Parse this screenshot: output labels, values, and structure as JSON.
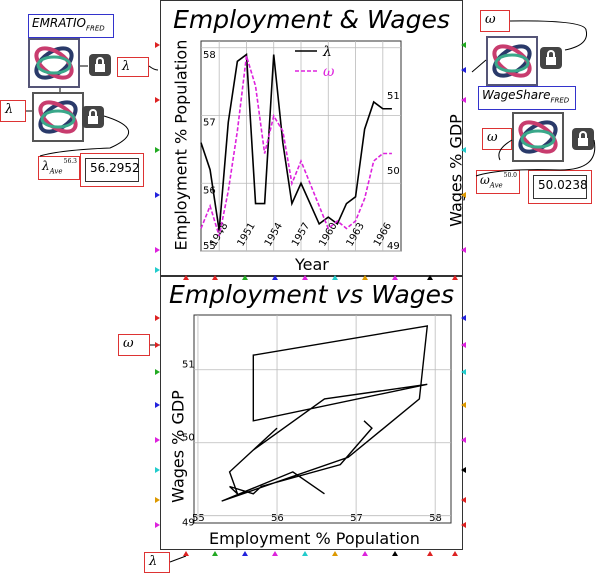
{
  "left_panel": {
    "emp_source_label": "EMRATIO",
    "emp_source_sub": "FRED",
    "emp_out_symbol": "λ",
    "lambda_input_symbol": "λ",
    "lambda_ave_symbol": "λ",
    "lambda_ave_sub": "Ave",
    "lambda_ave_sup": "56.3",
    "lambda_ave_value": "56.2952"
  },
  "right_panel": {
    "omega_top_symbol": "ω",
    "wage_source_label": "WageShare",
    "wage_source_sub": "FRED",
    "omega_input_symbol": "ω",
    "omega_ave_symbol": "ω",
    "omega_ave_sub": "Ave",
    "omega_ave_sup": "50.0",
    "omega_ave_value": "50.0238"
  },
  "side_inputs": {
    "omega_label": "ω",
    "lambda_bottom_label": "λ"
  },
  "colors": {
    "border_red": "#dd3333",
    "border_blue": "#3333cc",
    "omega_series": "#dd22dd",
    "lambda_series": "#000000"
  },
  "chart_data": [
    {
      "type": "line",
      "title": "Employment & Wages",
      "xlabel": "Year",
      "ylabel": "Employment % Population",
      "ylabel_right": "Wages % GDP",
      "x_ticks": [
        "1948",
        "1951",
        "1954",
        "1957",
        "1960",
        "1963",
        "1966"
      ],
      "y_ticks_left": [
        "55",
        "56",
        "57",
        "58"
      ],
      "y_ticks_right": [
        "49",
        "50",
        "51"
      ],
      "xlim": [
        1946.0,
        1968.0
      ],
      "ylim_left": [
        55.0,
        58.1
      ],
      "ylim_right": [
        49.0,
        51.8
      ],
      "legend_position": "top-right",
      "series": [
        {
          "name": "λ",
          "axis": "left",
          "x": [
            1946.0,
            1947.0,
            1948.0,
            1949.0,
            1950.0,
            1951.0,
            1952.0,
            1953.0,
            1954.0,
            1955.0,
            1956.0,
            1957.0,
            1958.0,
            1959.0,
            1960.0,
            1961.0,
            1962.0,
            1963.0,
            1964.0,
            1965.0,
            1966.0,
            1967.0
          ],
          "values": [
            56.6,
            56.2,
            55.3,
            56.9,
            57.8,
            57.9,
            55.7,
            55.7,
            57.9,
            56.6,
            55.7,
            56.0,
            55.7,
            55.4,
            55.5,
            55.4,
            55.7,
            55.8,
            56.8,
            57.2,
            57.1,
            57.1
          ]
        },
        {
          "name": "ω",
          "axis": "right",
          "x": [
            1946.0,
            1947.0,
            1948.0,
            1949.0,
            1950.0,
            1951.0,
            1952.0,
            1953.0,
            1954.0,
            1955.0,
            1956.0,
            1957.0,
            1958.0,
            1959.0,
            1960.0,
            1961.0,
            1962.0,
            1963.0,
            1964.0,
            1965.0,
            1966.0,
            1967.0
          ],
          "values": [
            49.3,
            49.6,
            49.2,
            49.8,
            50.6,
            51.6,
            51.2,
            50.3,
            50.8,
            50.6,
            49.9,
            50.2,
            49.9,
            49.6,
            49.3,
            49.4,
            49.3,
            49.4,
            49.7,
            50.2,
            50.3,
            50.3
          ]
        }
      ]
    },
    {
      "type": "line",
      "title": "Employment vs Wages",
      "xlabel": "Employment % Population",
      "ylabel": "Wages % GDP",
      "x_ticks": [
        "55",
        "56",
        "57",
        "58"
      ],
      "y_ticks": [
        "49",
        "50",
        "51"
      ],
      "xlim": [
        54.95,
        58.2
      ],
      "ylim": [
        48.9,
        51.75
      ],
      "series": [
        {
          "x": [
            56.6,
            56.2,
            55.3,
            56.9,
            57.8,
            57.9,
            55.7,
            55.7,
            57.9,
            56.6,
            55.7,
            56.0,
            55.7,
            55.4,
            55.5,
            55.4,
            55.7,
            55.8,
            56.8,
            57.2,
            57.1,
            57.1
          ],
          "values": [
            49.3,
            49.6,
            49.2,
            49.8,
            50.6,
            51.6,
            51.2,
            50.3,
            50.8,
            50.6,
            49.9,
            50.2,
            49.9,
            49.6,
            49.3,
            49.4,
            49.3,
            49.4,
            49.7,
            50.2,
            50.3,
            50.3
          ]
        }
      ]
    }
  ]
}
